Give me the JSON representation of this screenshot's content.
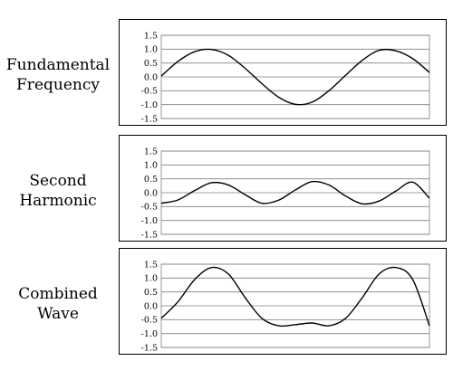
{
  "chart_data": [
    {
      "type": "line",
      "row_label": [
        "Fundamental",
        "Frequency"
      ],
      "ylim": [
        -1.5,
        1.5
      ],
      "yticks": [
        "1.5",
        "1.0",
        "0.5",
        "0.0",
        "-0.5",
        "-1.0",
        "-1.5"
      ],
      "grid": true,
      "series": [
        {
          "x": [
            0,
            20,
            40,
            60,
            80,
            100,
            120,
            140,
            160,
            180,
            200,
            220,
            240,
            260,
            280,
            300
          ],
          "values": [
            0.03,
            0.56,
            0.91,
            0.99,
            0.78,
            0.31,
            -0.24,
            -0.73,
            -0.99,
            -0.91,
            -0.5,
            0.06,
            0.6,
            0.96,
            0.94,
            0.66
          ],
          "x_end": 320,
          "values_end": 0.16
        }
      ]
    },
    {
      "type": "line",
      "row_label": [
        "Second",
        "Harmonic"
      ],
      "ylim": [
        -1.5,
        1.5
      ],
      "yticks": [
        "1.5",
        "1.0",
        "0.5",
        "0.0",
        "-0.5",
        "-1.0",
        "-1.5"
      ],
      "grid": true,
      "series": [
        {
          "x": [
            0,
            20,
            40,
            60,
            80,
            100,
            120,
            140,
            160,
            180,
            200,
            220,
            240,
            260,
            280,
            300,
            320
          ],
          "values": [
            -0.38,
            -0.26,
            0.08,
            0.36,
            0.28,
            -0.07,
            -0.38,
            -0.27,
            0.1,
            0.4,
            0.28,
            -0.12,
            -0.4,
            -0.3,
            0.06,
            0.38,
            -0.2
          ]
        }
      ]
    },
    {
      "type": "line",
      "row_label": [
        "Combined",
        "Wave"
      ],
      "ylim": [
        -1.5,
        1.5
      ],
      "yticks": [
        "1.5",
        "1.0",
        "0.5",
        "0.0",
        "-0.5",
        "-1.0",
        "-1.5"
      ],
      "grid": true,
      "series": [
        {
          "x": [
            0,
            20,
            40,
            60,
            80,
            100,
            120,
            140,
            160,
            180,
            200,
            220,
            240,
            260,
            280,
            300,
            320
          ],
          "values": [
            -0.45,
            0.15,
            0.95,
            1.38,
            1.15,
            0.3,
            -0.45,
            -0.72,
            -0.68,
            -0.62,
            -0.72,
            -0.45,
            0.3,
            1.15,
            1.38,
            0.95,
            -0.72
          ]
        }
      ]
    }
  ]
}
